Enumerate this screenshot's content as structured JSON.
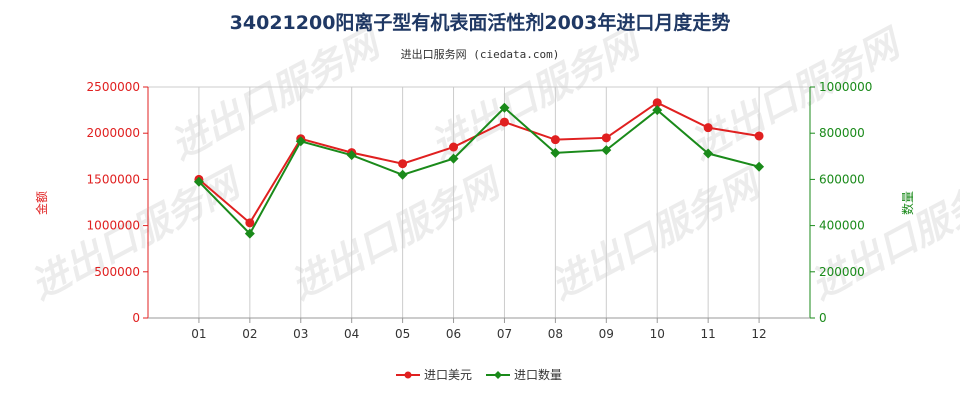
{
  "chart_data": {
    "type": "line",
    "title": "34021200阳离子型有机表面活性剂2003年进口月度走势",
    "subtitle": "进出口服务网 (ciedata.com)",
    "watermark": "进出口服务网",
    "categories": [
      "01",
      "02",
      "03",
      "04",
      "05",
      "06",
      "07",
      "08",
      "09",
      "10",
      "11",
      "12"
    ],
    "y_left": {
      "label": "金额",
      "range": [
        0,
        2500000
      ],
      "ticks": [
        "0",
        "500000",
        "1000000",
        "1500000",
        "2000000",
        "2500000"
      ],
      "tick_values": [
        0,
        500000,
        1000000,
        1500000,
        2000000,
        2500000
      ],
      "color": "#e02020"
    },
    "y_right": {
      "label": "数量",
      "range": [
        0,
        1000000
      ],
      "ticks": [
        "0",
        "200000",
        "400000",
        "600000",
        "800000",
        "1000000"
      ],
      "tick_values": [
        0,
        200000,
        400000,
        600000,
        800000,
        1000000
      ],
      "color": "#1a8a1a"
    },
    "series": [
      {
        "name": "进口美元",
        "axis": "left",
        "color": "#e02020",
        "marker": "circle",
        "values": [
          1500000,
          1030000,
          1940000,
          1790000,
          1670000,
          1850000,
          2120000,
          1930000,
          1950000,
          2330000,
          2060000,
          1970000
        ]
      },
      {
        "name": "进口数量",
        "axis": "right",
        "color": "#1a8a1a",
        "marker": "diamond",
        "values": [
          590000,
          365000,
          765000,
          705000,
          620000,
          690000,
          910000,
          715000,
          727000,
          900000,
          712000,
          655000
        ]
      }
    ],
    "grid": "vertical",
    "legend": "bottom-center"
  }
}
